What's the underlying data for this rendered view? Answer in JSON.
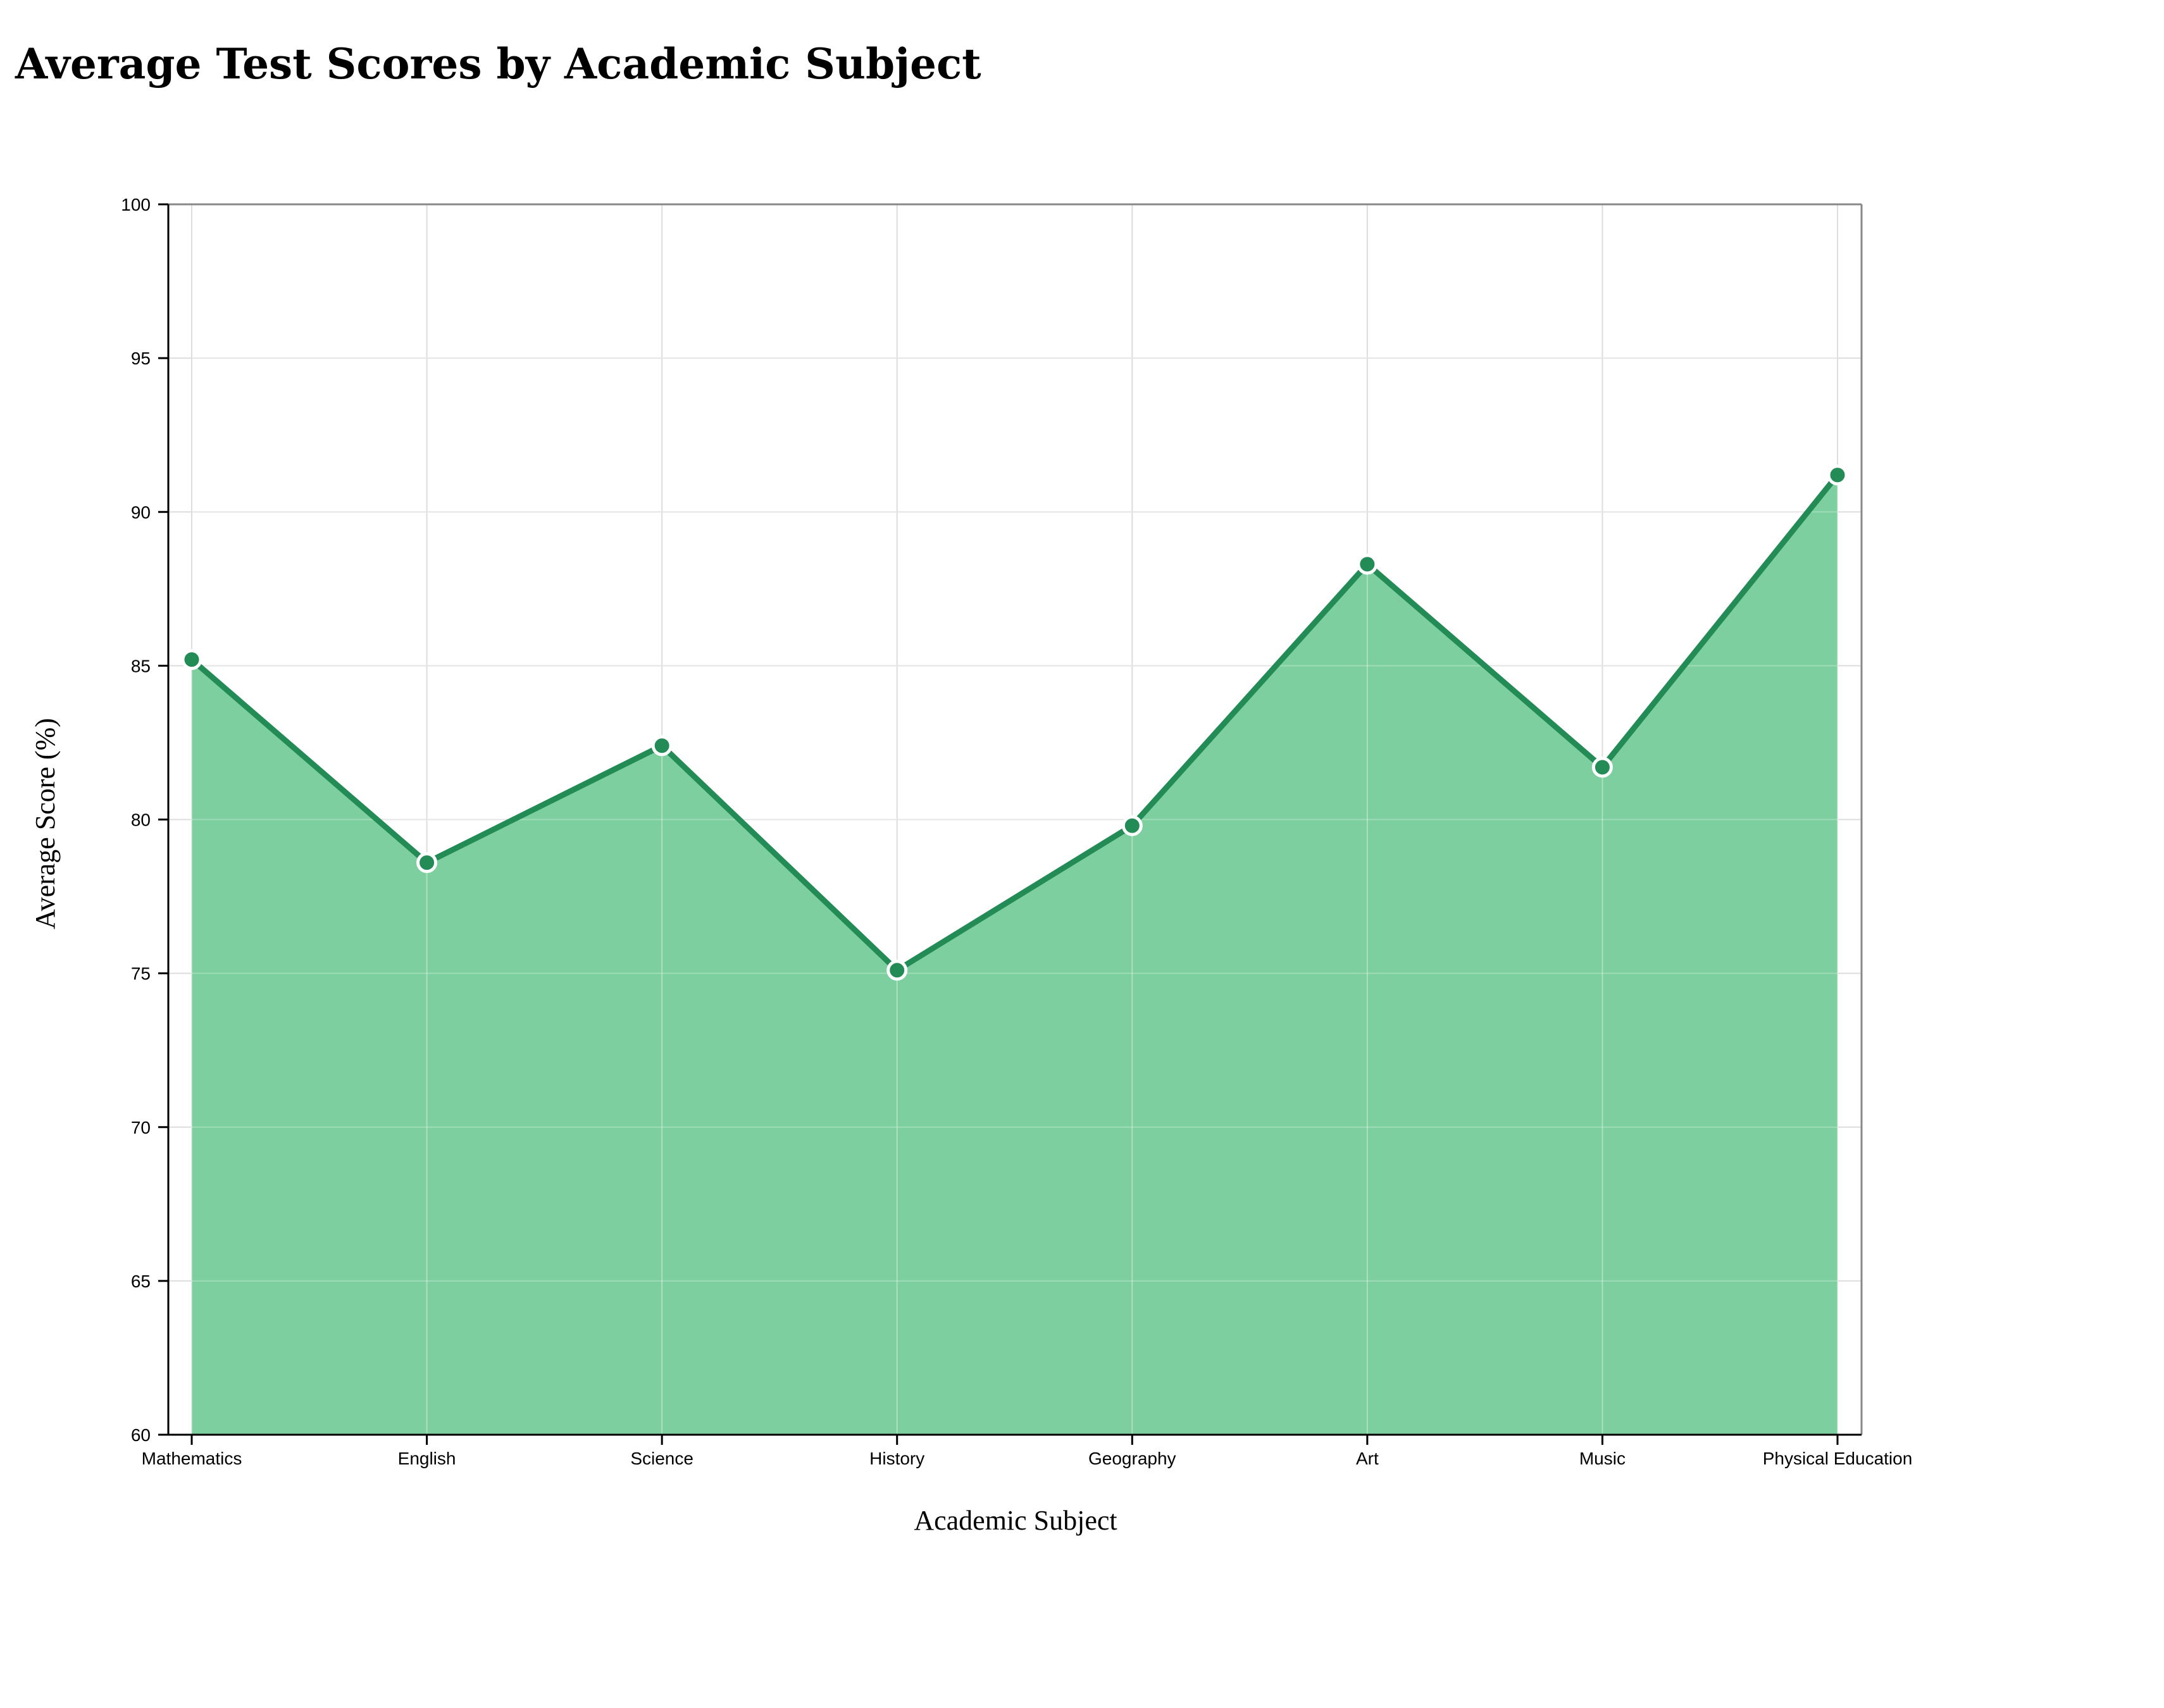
{
  "chart_data": {
    "type": "area",
    "title": "Average Test Scores by Academic Subject",
    "xlabel": "Academic Subject",
    "ylabel": "Average Score (%)",
    "categories": [
      "Mathematics",
      "English",
      "Science",
      "History",
      "Geography",
      "Art",
      "Music",
      "Physical Education"
    ],
    "series": [
      {
        "name": "Average Score",
        "values": [
          85.2,
          78.6,
          82.4,
          75.1,
          79.8,
          88.3,
          81.7,
          91.2
        ]
      }
    ],
    "ylim": [
      60,
      100
    ],
    "yticks": [
      60,
      65,
      70,
      75,
      80,
      85,
      90,
      95,
      100
    ],
    "grid": true,
    "colors": {
      "line": "#238b55",
      "fill": "#7ecf9f",
      "grid": "#dddddd",
      "axis": "#000000",
      "frame": "#888888",
      "marker_stroke": "#ffffff"
    }
  }
}
